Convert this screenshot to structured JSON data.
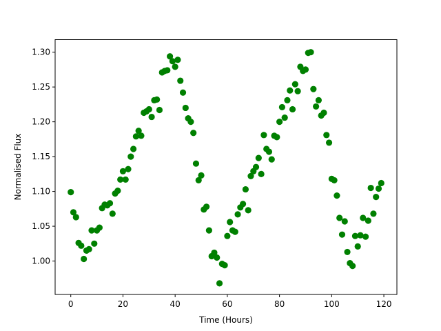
{
  "chart_data": {
    "type": "scatter",
    "title": "",
    "xlabel": "Time (Hours)",
    "ylabel": "Normalised Flux",
    "xlim": [
      -6,
      125
    ],
    "ylim": [
      0.952,
      1.318
    ],
    "xticks": [
      0,
      20,
      40,
      60,
      80,
      100,
      120
    ],
    "yticks": [
      1.0,
      1.05,
      1.1,
      1.15,
      1.2,
      1.25,
      1.3
    ],
    "ytick_labels": [
      "1.00",
      "1.05",
      "1.10",
      "1.15",
      "1.20",
      "1.25",
      "1.30"
    ],
    "grid": false,
    "marker_color": "#008000",
    "series": [
      {
        "x": [
          0,
          1,
          2,
          3,
          4,
          5,
          6,
          7,
          8,
          9,
          10,
          11,
          12,
          13,
          14,
          15,
          16,
          17,
          18,
          19,
          20,
          21,
          22,
          23,
          24,
          25,
          26,
          27,
          28,
          29,
          30,
          31,
          32,
          33,
          34,
          35,
          36,
          37,
          38,
          39,
          40,
          41,
          42,
          43,
          44,
          45,
          46,
          47,
          48,
          49,
          50,
          51,
          52,
          53,
          54,
          55,
          56,
          57,
          58,
          59,
          60,
          61,
          62,
          63,
          64,
          65,
          66,
          67,
          68,
          69,
          70,
          71,
          72,
          73,
          74,
          75,
          76,
          77,
          78,
          79,
          80,
          81,
          82,
          83,
          84,
          85,
          86,
          87,
          88,
          89,
          90,
          91,
          92,
          93,
          94,
          95,
          96,
          97,
          98,
          99,
          100,
          101,
          102,
          103,
          104,
          105,
          106,
          107,
          108,
          109,
          110,
          111,
          112,
          113,
          114,
          115,
          116,
          117,
          118,
          119
        ],
        "y": [
          1.099,
          1.07,
          1.063,
          1.026,
          1.022,
          1.003,
          1.015,
          1.017,
          1.044,
          1.025,
          1.044,
          1.048,
          1.076,
          1.081,
          1.08,
          1.083,
          1.068,
          1.097,
          1.101,
          1.117,
          1.129,
          1.117,
          1.132,
          1.15,
          1.161,
          1.179,
          1.187,
          1.18,
          1.213,
          1.215,
          1.218,
          1.207,
          1.231,
          1.232,
          1.217,
          1.271,
          1.273,
          1.274,
          1.294,
          1.287,
          1.279,
          1.289,
          1.259,
          1.242,
          1.22,
          1.205,
          1.2,
          1.184,
          1.14,
          1.116,
          1.123,
          1.074,
          1.078,
          1.044,
          1.007,
          1.012,
          1.005,
          0.968,
          0.996,
          0.994,
          1.036,
          1.056,
          1.044,
          1.042,
          1.067,
          1.077,
          1.082,
          1.103,
          1.073,
          1.122,
          1.129,
          1.135,
          1.148,
          1.125,
          1.181,
          1.161,
          1.157,
          1.146,
          1.18,
          1.178,
          1.2,
          1.221,
          1.206,
          1.231,
          1.245,
          1.218,
          1.254,
          1.244,
          1.279,
          1.273,
          1.275,
          1.299,
          1.3,
          1.247,
          1.222,
          1.231,
          1.209,
          1.213,
          1.181,
          1.17,
          1.118,
          1.116,
          1.094,
          1.062,
          1.038,
          1.057,
          1.013,
          0.997,
          0.993,
          1.036,
          1.021,
          1.037,
          1.062,
          1.035,
          1.058,
          1.105,
          1.068,
          1.092,
          1.104,
          1.112
        ]
      }
    ]
  }
}
